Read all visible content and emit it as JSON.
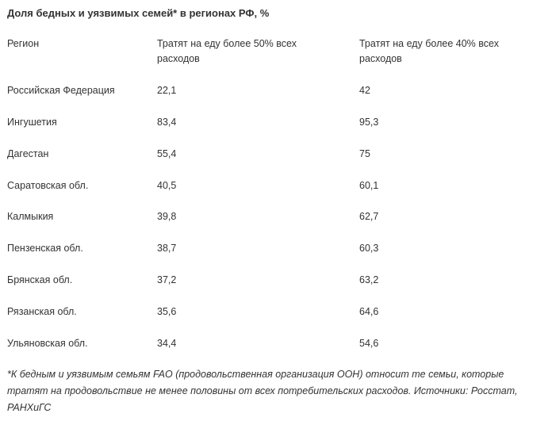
{
  "title": "Доля бедных и уязвимых семей* в регионах РФ, %",
  "table": {
    "headers": [
      "Регион",
      "Тратят на еду более 50% всех расходов",
      "Тратят на еду более 40% всех расходов"
    ],
    "rows": [
      [
        "Российская Федерация",
        "22,1",
        "42"
      ],
      [
        "Ингушетия",
        "83,4",
        "95,3"
      ],
      [
        "Дагестан",
        "55,4",
        "75"
      ],
      [
        "Саратовская обл.",
        "40,5",
        "60,1"
      ],
      [
        "Калмыкия",
        "39,8",
        "62,7"
      ],
      [
        "Пензенская обл.",
        "38,7",
        "60,3"
      ],
      [
        "Брянская обл.",
        "37,2",
        "63,2"
      ],
      [
        "Рязанская обл.",
        "35,6",
        "64,6"
      ],
      [
        "Ульяновская обл.",
        "34,4",
        "54,6"
      ]
    ]
  },
  "footnote": "*К бедным и уязвимым семьям FAO (продовольственная организация ООН) относит те семьи, которые тратят на продовольствие не менее половины от всех потребительских расходов. Источники: Росстат, РАНХиГС"
}
